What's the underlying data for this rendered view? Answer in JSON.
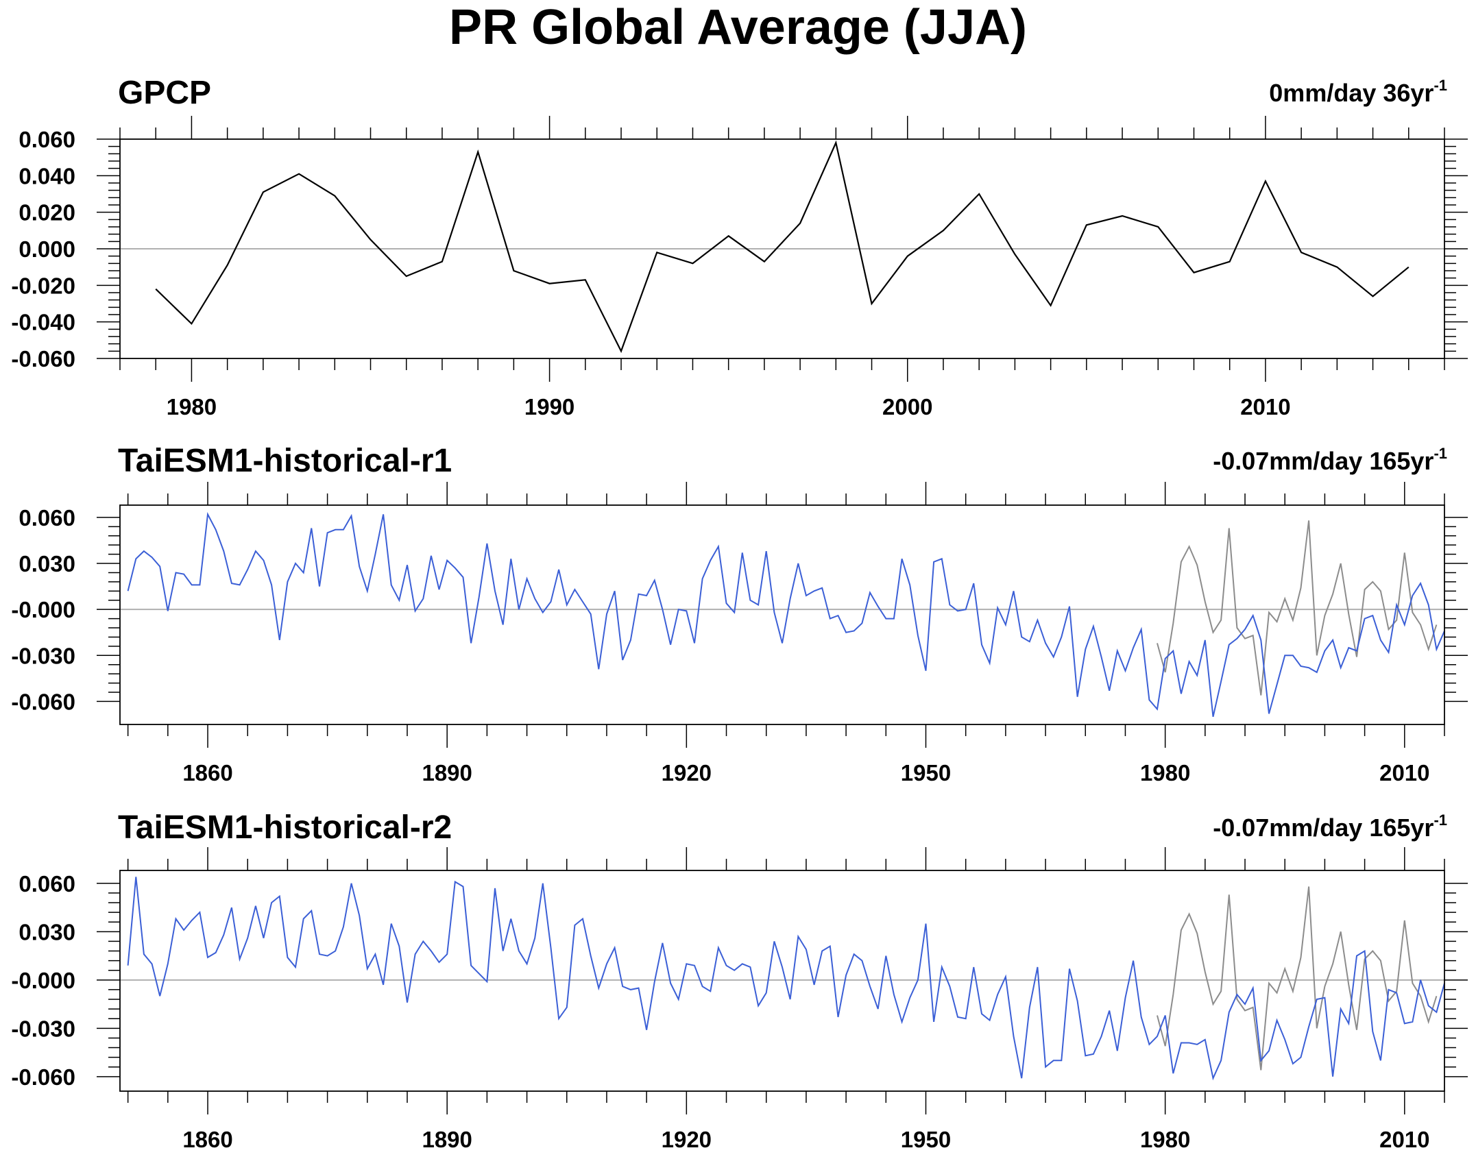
{
  "title": "PR Global Average (JJA)",
  "colors": {
    "model": "#3b5fd6",
    "obs_overlay": "#8c8c8c",
    "obs": "#000000",
    "zero_line": "#b0b0b0"
  },
  "chart_data": [
    {
      "type": "line",
      "title": "GPCP",
      "trend": {
        "text": "0mm/day 36yr",
        "sup": "-1"
      },
      "xlim": [
        1978,
        2015
      ],
      "ylim": [
        -0.06,
        0.06
      ],
      "yticks": [
        "0.060",
        "0.040",
        "0.020",
        "0.000",
        "-0.020",
        "-0.040",
        "-0.060"
      ],
      "xticks": [
        "1980",
        "1990",
        "2000",
        "2010"
      ],
      "series": [
        {
          "role": "obs",
          "x": [
            1979,
            1980,
            1981,
            1982,
            1983,
            1984,
            1985,
            1986,
            1987,
            1988,
            1989,
            1990,
            1991,
            1992,
            1993,
            1994,
            1995,
            1996,
            1997,
            1998,
            1999,
            2000,
            2001,
            2002,
            2003,
            2004,
            2005,
            2006,
            2007,
            2008,
            2009,
            2010,
            2011,
            2012,
            2013,
            2014
          ],
          "y": [
            -0.022,
            -0.041,
            -0.009,
            0.031,
            0.041,
            0.029,
            0.005,
            -0.015,
            -0.007,
            0.053,
            -0.012,
            -0.019,
            -0.017,
            -0.056,
            -0.002,
            -0.008,
            0.007,
            -0.007,
            0.014,
            0.058,
            -0.03,
            -0.004,
            0.01,
            0.03,
            -0.003,
            -0.031,
            0.013,
            0.018,
            0.012,
            -0.013,
            -0.007,
            0.037,
            -0.002,
            -0.01,
            -0.026,
            -0.01
          ]
        }
      ]
    },
    {
      "type": "line",
      "title": "TaiESM1-historical-r1",
      "trend": {
        "text": "-0.07mm/day 165yr",
        "sup": "-1"
      },
      "xlim": [
        1849,
        2015
      ],
      "ylim": [
        -0.075,
        0.068
      ],
      "yticks": [
        "0.060",
        "0.030",
        "-0.000",
        "-0.030",
        "-0.060"
      ],
      "xticks": [
        "1860",
        "1890",
        "1920",
        "1950",
        "1980",
        "2010"
      ],
      "series": [
        {
          "role": "model",
          "x_start": 1850,
          "y": [
            0.012,
            0.033,
            0.038,
            0.034,
            0.028,
            -0.001,
            0.024,
            0.023,
            0.016,
            0.016,
            0.062,
            0.052,
            0.038,
            0.017,
            0.016,
            0.026,
            0.038,
            0.032,
            0.016,
            -0.02,
            0.018,
            0.03,
            0.024,
            0.053,
            0.015,
            0.05,
            0.052,
            0.052,
            0.061,
            0.028,
            0.012,
            0.036,
            0.062,
            0.016,
            0.006,
            0.029,
            -0.001,
            0.007,
            0.035,
            0.013,
            0.032,
            0.027,
            0.021,
            -0.022,
            0.008,
            0.043,
            0.012,
            -0.01,
            0.033,
            0.0,
            0.02,
            0.007,
            -0.002,
            0.005,
            0.026,
            0.003,
            0.013,
            0.005,
            -0.003,
            -0.039,
            -0.003,
            0.012,
            -0.033,
            -0.02,
            0.01,
            0.009,
            0.019,
            0.0,
            -0.023,
            0.0,
            -0.001,
            -0.022,
            0.02,
            0.032,
            0.041,
            0.004,
            -0.002,
            0.037,
            0.006,
            0.003,
            0.038,
            -0.002,
            -0.022,
            0.007,
            0.03,
            0.009,
            0.012,
            0.014,
            -0.006,
            -0.004,
            -0.015,
            -0.014,
            -0.009,
            0.011,
            0.002,
            -0.006,
            -0.006,
            0.033,
            0.016,
            -0.017,
            -0.04,
            0.031,
            0.033,
            0.003,
            -0.001,
            0.0,
            0.017,
            -0.023,
            -0.035,
            0.001,
            -0.01,
            0.012,
            -0.018,
            -0.021,
            -0.007,
            -0.022,
            -0.031,
            -0.018,
            0.002,
            -0.057,
            -0.026,
            -0.011,
            -0.031,
            -0.053,
            -0.027,
            -0.04,
            -0.025,
            -0.013,
            -0.059,
            -0.065,
            -0.032,
            -0.027,
            -0.055,
            -0.034,
            -0.043,
            -0.02,
            -0.07,
            -0.047,
            -0.023,
            -0.019,
            -0.013,
            -0.004,
            -0.02,
            -0.068,
            -0.049,
            -0.03,
            -0.03,
            -0.037,
            -0.038,
            -0.041,
            -0.027,
            -0.02,
            -0.038,
            -0.025,
            -0.027,
            -0.006,
            -0.004,
            -0.02,
            -0.028,
            0.003,
            -0.01,
            0.009,
            0.017,
            0.003,
            -0.026,
            -0.014
          ]
        },
        {
          "role": "obs_overlay",
          "x_start": 1979,
          "y": [
            -0.022,
            -0.041,
            -0.009,
            0.031,
            0.041,
            0.029,
            0.005,
            -0.015,
            -0.007,
            0.053,
            -0.012,
            -0.019,
            -0.017,
            -0.056,
            -0.002,
            -0.008,
            0.007,
            -0.007,
            0.014,
            0.058,
            -0.03,
            -0.004,
            0.01,
            0.03,
            -0.003,
            -0.031,
            0.013,
            0.018,
            0.012,
            -0.013,
            -0.007,
            0.037,
            -0.002,
            -0.01,
            -0.026,
            -0.01
          ]
        }
      ]
    },
    {
      "type": "line",
      "title": "TaiESM1-historical-r2",
      "trend": {
        "text": "-0.07mm/day 165yr",
        "sup": "-1"
      },
      "xlim": [
        1849,
        2015
      ],
      "ylim": [
        -0.069,
        0.068
      ],
      "yticks": [
        "0.060",
        "0.030",
        "-0.000",
        "-0.030",
        "-0.060"
      ],
      "xticks": [
        "1860",
        "1890",
        "1920",
        "1950",
        "1980",
        "2010"
      ],
      "series": [
        {
          "role": "model",
          "x_start": 1850,
          "y": [
            0.009,
            0.064,
            0.016,
            0.01,
            -0.01,
            0.01,
            0.038,
            0.031,
            0.037,
            0.042,
            0.014,
            0.017,
            0.028,
            0.045,
            0.013,
            0.026,
            0.046,
            0.026,
            0.048,
            0.052,
            0.014,
            0.008,
            0.038,
            0.043,
            0.016,
            0.015,
            0.018,
            0.033,
            0.06,
            0.04,
            0.007,
            0.016,
            -0.003,
            0.035,
            0.021,
            -0.014,
            0.016,
            0.024,
            0.018,
            0.011,
            0.016,
            0.061,
            0.058,
            0.009,
            0.004,
            -0.001,
            0.057,
            0.018,
            0.038,
            0.018,
            0.01,
            0.026,
            0.06,
            0.02,
            -0.024,
            -0.017,
            0.034,
            0.038,
            0.015,
            -0.005,
            0.01,
            0.02,
            -0.004,
            -0.006,
            -0.005,
            -0.031,
            -0.001,
            0.023,
            -0.002,
            -0.012,
            0.01,
            0.009,
            -0.004,
            -0.007,
            0.02,
            0.009,
            0.006,
            0.01,
            0.008,
            -0.016,
            -0.008,
            0.024,
            0.008,
            -0.012,
            0.027,
            0.019,
            -0.003,
            0.018,
            0.021,
            -0.023,
            0.003,
            0.016,
            0.012,
            -0.004,
            -0.018,
            0.015,
            -0.009,
            -0.026,
            -0.011,
            -0.0,
            0.035,
            -0.026,
            0.008,
            -0.004,
            -0.023,
            -0.024,
            0.008,
            -0.021,
            -0.025,
            -0.009,
            0.002,
            -0.035,
            -0.061,
            -0.017,
            0.008,
            -0.054,
            -0.05,
            -0.05,
            0.007,
            -0.013,
            -0.047,
            -0.046,
            -0.035,
            -0.019,
            -0.044,
            -0.011,
            0.012,
            -0.023,
            -0.04,
            -0.035,
            -0.022,
            -0.058,
            -0.039,
            -0.039,
            -0.04,
            -0.037,
            -0.061,
            -0.05,
            -0.02,
            -0.009,
            -0.015,
            -0.005,
            -0.05,
            -0.044,
            -0.025,
            -0.037,
            -0.052,
            -0.048,
            -0.029,
            -0.012,
            -0.011,
            -0.06,
            -0.018,
            -0.027,
            0.015,
            0.018,
            -0.032,
            -0.05,
            -0.006,
            -0.008,
            -0.027,
            -0.026,
            -0.0,
            -0.016,
            -0.02,
            -0.002
          ]
        },
        {
          "role": "obs_overlay",
          "x_start": 1979,
          "y": [
            -0.022,
            -0.041,
            -0.009,
            0.031,
            0.041,
            0.029,
            0.005,
            -0.015,
            -0.007,
            0.053,
            -0.012,
            -0.019,
            -0.017,
            -0.056,
            -0.002,
            -0.008,
            0.007,
            -0.007,
            0.014,
            0.058,
            -0.03,
            -0.004,
            0.01,
            0.03,
            -0.003,
            -0.031,
            0.013,
            0.018,
            0.012,
            -0.013,
            -0.007,
            0.037,
            -0.002,
            -0.01,
            -0.026,
            -0.01
          ]
        }
      ]
    }
  ]
}
